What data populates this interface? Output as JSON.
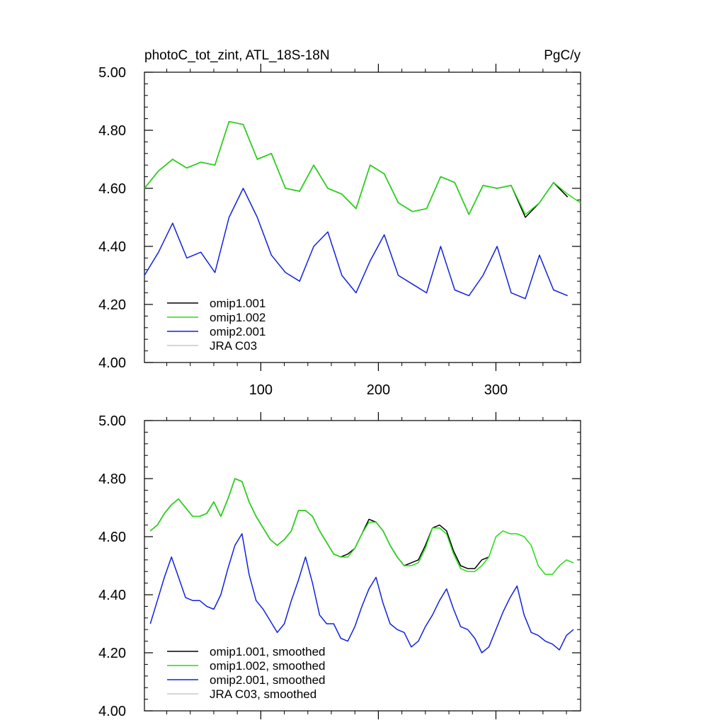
{
  "chart_data": [
    {
      "type": "line",
      "title": "photoC_tot_zint, ATL_18S-18N",
      "units": "PgC/y",
      "xlabel": "",
      "ylabel": "",
      "xlim": [
        1,
        372
      ],
      "ylim": [
        4.0,
        5.0
      ],
      "yticks": [
        4.0,
        4.2,
        4.4,
        4.6,
        4.8,
        5.0
      ],
      "ytick_labels": [
        "4.00",
        "4.20",
        "4.40",
        "4.60",
        "4.80",
        "5.00"
      ],
      "xticks": [
        100,
        200,
        300
      ],
      "xtick_labels": [
        "100",
        "200",
        "300"
      ],
      "legend_position": "bottom-left",
      "series": [
        {
          "name": "omip1.001",
          "color": "#000000",
          "x_start": 1,
          "x_step": 12,
          "values": [
            4.6,
            4.66,
            4.7,
            4.67,
            4.69,
            4.68,
            4.83,
            4.82,
            4.7,
            4.72,
            4.6,
            4.59,
            4.68,
            4.6,
            4.58,
            4.53,
            4.68,
            4.65,
            4.55,
            4.52,
            4.53,
            4.64,
            4.62,
            4.51,
            4.61,
            4.6,
            4.61,
            4.5,
            4.55,
            4.62,
            4.57
          ]
        },
        {
          "name": "omip1.002",
          "color": "#22dd11",
          "x_start": 1,
          "x_step": 12,
          "values": [
            4.6,
            4.66,
            4.7,
            4.67,
            4.69,
            4.68,
            4.83,
            4.82,
            4.7,
            4.72,
            4.6,
            4.59,
            4.68,
            4.6,
            4.58,
            4.53,
            4.68,
            4.65,
            4.55,
            4.52,
            4.53,
            4.64,
            4.62,
            4.51,
            4.61,
            4.6,
            4.61,
            4.51,
            4.55,
            4.62,
            4.58,
            4.55
          ]
        },
        {
          "name": "omip2.001",
          "color": "#1122dd",
          "x_start": 1,
          "x_step": 12,
          "values": [
            4.3,
            4.38,
            4.48,
            4.36,
            4.38,
            4.31,
            4.5,
            4.6,
            4.5,
            4.37,
            4.31,
            4.28,
            4.4,
            4.45,
            4.3,
            4.24,
            4.35,
            4.44,
            4.3,
            4.27,
            4.24,
            4.4,
            4.25,
            4.23,
            4.3,
            4.4,
            4.24,
            4.22,
            4.37,
            4.25,
            4.23
          ]
        },
        {
          "name": "JRA C03",
          "color": "#c8c8c8",
          "values": []
        }
      ]
    },
    {
      "type": "line",
      "title": "",
      "xlabel": "",
      "ylabel": "",
      "xlim": [
        1,
        372
      ],
      "ylim": [
        4.0,
        5.0
      ],
      "yticks": [
        4.0,
        4.2,
        4.4,
        4.6,
        4.8,
        5.0
      ],
      "ytick_labels": [
        "4.00",
        "4.20",
        "4.40",
        "4.60",
        "4.80",
        "5.00"
      ],
      "xticks": [
        100,
        200,
        300
      ],
      "xtick_labels": [],
      "legend_position": "bottom-left",
      "series": [
        {
          "name": "omip1.001, smoothed",
          "color": "#000000",
          "x_start": 6,
          "x_step": 6,
          "values": [
            4.62,
            4.64,
            4.68,
            4.71,
            4.73,
            4.7,
            4.67,
            4.67,
            4.68,
            4.72,
            4.67,
            4.73,
            4.8,
            4.79,
            4.72,
            4.67,
            4.63,
            4.59,
            4.57,
            4.59,
            4.62,
            4.69,
            4.69,
            4.67,
            4.62,
            4.58,
            4.54,
            4.53,
            4.54,
            4.56,
            4.61,
            4.66,
            4.65,
            4.62,
            4.57,
            4.53,
            4.5,
            4.51,
            4.52,
            4.57,
            4.63,
            4.64,
            4.62,
            4.55,
            4.5,
            4.49,
            4.49,
            4.52,
            4.53
          ]
        },
        {
          "name": "omip1.002, smoothed",
          "color": "#22dd11",
          "x_start": 6,
          "x_step": 6,
          "values": [
            4.62,
            4.64,
            4.68,
            4.71,
            4.73,
            4.7,
            4.67,
            4.67,
            4.68,
            4.72,
            4.67,
            4.73,
            4.8,
            4.79,
            4.72,
            4.67,
            4.63,
            4.59,
            4.57,
            4.59,
            4.62,
            4.69,
            4.69,
            4.67,
            4.62,
            4.58,
            4.54,
            4.53,
            4.53,
            4.56,
            4.61,
            4.65,
            4.65,
            4.62,
            4.57,
            4.53,
            4.5,
            4.5,
            4.51,
            4.56,
            4.63,
            4.63,
            4.61,
            4.54,
            4.49,
            4.48,
            4.48,
            4.5,
            4.53,
            4.6,
            4.62,
            4.61,
            4.61,
            4.6,
            4.57,
            4.5,
            4.47,
            4.47,
            4.5,
            4.52,
            4.51
          ]
        },
        {
          "name": "omip2.001, smoothed",
          "color": "#1122dd",
          "x_start": 6,
          "x_step": 6,
          "values": [
            4.3,
            4.38,
            4.46,
            4.53,
            4.46,
            4.39,
            4.38,
            4.38,
            4.36,
            4.35,
            4.4,
            4.49,
            4.57,
            4.61,
            4.47,
            4.38,
            4.35,
            4.31,
            4.27,
            4.3,
            4.38,
            4.45,
            4.53,
            4.44,
            4.33,
            4.3,
            4.3,
            4.25,
            4.24,
            4.29,
            4.36,
            4.42,
            4.46,
            4.37,
            4.3,
            4.28,
            4.27,
            4.22,
            4.24,
            4.29,
            4.33,
            4.38,
            4.42,
            4.35,
            4.29,
            4.28,
            4.25,
            4.2,
            4.22,
            4.28,
            4.34,
            4.39,
            4.43,
            4.33,
            4.27,
            4.26,
            4.24,
            4.23,
            4.21,
            4.26,
            4.28
          ]
        },
        {
          "name": "JRA C03, smoothed",
          "color": "#c8c8c8",
          "values": []
        }
      ]
    }
  ]
}
